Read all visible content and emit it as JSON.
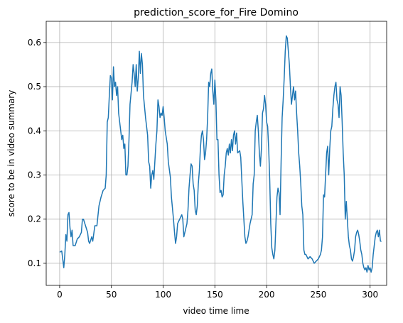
{
  "chart_data": {
    "type": "line",
    "title": "prediction_score_for_Fire Domino",
    "xlabel": "video time lime",
    "ylabel": "score to be in video summary",
    "color": "#1f77b4",
    "grid": true,
    "xlim": [
      -13,
      316
    ],
    "ylim": [
      0.05,
      0.648
    ],
    "xticks": [
      0,
      50,
      100,
      150,
      200,
      250,
      300
    ],
    "yticks": [
      0.1,
      0.2,
      0.3,
      0.4,
      0.5,
      0.6
    ],
    "x": [
      0,
      2,
      4,
      5,
      6,
      7,
      8,
      9,
      10,
      11,
      12,
      13,
      15,
      17,
      19,
      21,
      22,
      23,
      25,
      27,
      28,
      29,
      31,
      32,
      34,
      36,
      38,
      40,
      42,
      44,
      45,
      46,
      47,
      48,
      49,
      50,
      51,
      52,
      53,
      54,
      55,
      56,
      57,
      58,
      59,
      60,
      61,
      62,
      63,
      64,
      65,
      66,
      67,
      68,
      70,
      71,
      72,
      73,
      74,
      75,
      76,
      77,
      78,
      79,
      80,
      81,
      83,
      85,
      86,
      87,
      88,
      89,
      90,
      91,
      92,
      93,
      94,
      95,
      96,
      97,
      98,
      99,
      100,
      101,
      102,
      104,
      105,
      107,
      108,
      110,
      111,
      112,
      113,
      114,
      116,
      118,
      119,
      120,
      121,
      122,
      123,
      124,
      125,
      126,
      127,
      128,
      129,
      130,
      131,
      132,
      133,
      134,
      135,
      136,
      137,
      138,
      139,
      140,
      141,
      142,
      143,
      144,
      145,
      146,
      147,
      148,
      149,
      150,
      151,
      152,
      153,
      154,
      155,
      156,
      157,
      158,
      159,
      160,
      161,
      162,
      163,
      164,
      165,
      166,
      167,
      168,
      169,
      170,
      171,
      172,
      174,
      175,
      176,
      177,
      178,
      179,
      180,
      181,
      182,
      184,
      185,
      186,
      187,
      188,
      189,
      190,
      191,
      192,
      193,
      194,
      195,
      196,
      197,
      198,
      199,
      200,
      201,
      202,
      203,
      204,
      205,
      206,
      207,
      208,
      209,
      210,
      211,
      212,
      213,
      214,
      215,
      216,
      217,
      218,
      219,
      220,
      221,
      222,
      223,
      224,
      225,
      226,
      227,
      228,
      229,
      230,
      231,
      232,
      233,
      234,
      235,
      236,
      237,
      238,
      239,
      240,
      242,
      244,
      246,
      248,
      250,
      252,
      253,
      254,
      255,
      256,
      257,
      258,
      259,
      260,
      261,
      262,
      263,
      264,
      265,
      266,
      267,
      268,
      269,
      270,
      271,
      272,
      273,
      274,
      275,
      276,
      277,
      278,
      279,
      280,
      281,
      282,
      283,
      284,
      285,
      286,
      287,
      288,
      289,
      290,
      291,
      292,
      293,
      294,
      295,
      296,
      297,
      298,
      299,
      300,
      301,
      302,
      303,
      304,
      305,
      306,
      307,
      308,
      309,
      310,
      311
    ],
    "values": [
      0.125,
      0.128,
      0.09,
      0.12,
      0.165,
      0.15,
      0.21,
      0.215,
      0.18,
      0.16,
      0.175,
      0.14,
      0.14,
      0.155,
      0.16,
      0.17,
      0.2,
      0.2,
      0.185,
      0.17,
      0.15,
      0.145,
      0.16,
      0.15,
      0.185,
      0.185,
      0.23,
      0.25,
      0.265,
      0.27,
      0.3,
      0.42,
      0.43,
      0.48,
      0.525,
      0.52,
      0.47,
      0.545,
      0.5,
      0.51,
      0.48,
      0.5,
      0.44,
      0.42,
      0.4,
      0.38,
      0.39,
      0.36,
      0.37,
      0.3,
      0.3,
      0.32,
      0.38,
      0.46,
      0.51,
      0.55,
      0.53,
      0.5,
      0.55,
      0.49,
      0.52,
      0.58,
      0.53,
      0.575,
      0.55,
      0.48,
      0.43,
      0.39,
      0.33,
      0.32,
      0.27,
      0.3,
      0.31,
      0.29,
      0.33,
      0.37,
      0.4,
      0.47,
      0.455,
      0.43,
      0.44,
      0.435,
      0.455,
      0.43,
      0.4,
      0.37,
      0.33,
      0.295,
      0.25,
      0.2,
      0.17,
      0.145,
      0.16,
      0.19,
      0.2,
      0.21,
      0.2,
      0.16,
      0.17,
      0.18,
      0.19,
      0.22,
      0.27,
      0.3,
      0.325,
      0.32,
      0.28,
      0.265,
      0.22,
      0.21,
      0.23,
      0.28,
      0.31,
      0.36,
      0.39,
      0.4,
      0.38,
      0.335,
      0.35,
      0.38,
      0.43,
      0.51,
      0.5,
      0.53,
      0.54,
      0.49,
      0.46,
      0.515,
      0.47,
      0.38,
      0.38,
      0.3,
      0.26,
      0.265,
      0.25,
      0.255,
      0.3,
      0.32,
      0.35,
      0.36,
      0.345,
      0.37,
      0.35,
      0.38,
      0.355,
      0.39,
      0.4,
      0.37,
      0.395,
      0.35,
      0.355,
      0.34,
      0.29,
      0.24,
      0.2,
      0.16,
      0.145,
      0.15,
      0.16,
      0.19,
      0.2,
      0.21,
      0.28,
      0.3,
      0.4,
      0.42,
      0.435,
      0.4,
      0.35,
      0.32,
      0.36,
      0.44,
      0.45,
      0.48,
      0.46,
      0.42,
      0.41,
      0.36,
      0.29,
      0.19,
      0.135,
      0.12,
      0.11,
      0.13,
      0.19,
      0.25,
      0.27,
      0.26,
      0.21,
      0.33,
      0.43,
      0.47,
      0.52,
      0.58,
      0.615,
      0.61,
      0.58,
      0.55,
      0.5,
      0.46,
      0.48,
      0.5,
      0.47,
      0.49,
      0.44,
      0.4,
      0.35,
      0.32,
      0.28,
      0.23,
      0.21,
      0.13,
      0.12,
      0.12,
      0.115,
      0.11,
      0.115,
      0.11,
      0.1,
      0.105,
      0.11,
      0.12,
      0.13,
      0.16,
      0.255,
      0.25,
      0.3,
      0.35,
      0.365,
      0.3,
      0.36,
      0.4,
      0.41,
      0.45,
      0.48,
      0.5,
      0.51,
      0.47,
      0.46,
      0.43,
      0.5,
      0.48,
      0.42,
      0.35,
      0.3,
      0.2,
      0.24,
      0.2,
      0.16,
      0.14,
      0.13,
      0.11,
      0.105,
      0.115,
      0.13,
      0.16,
      0.17,
      0.175,
      0.165,
      0.15,
      0.13,
      0.12,
      0.1,
      0.09,
      0.085,
      0.09,
      0.08,
      0.095,
      0.085,
      0.09,
      0.08,
      0.09,
      0.12,
      0.14,
      0.16,
      0.17,
      0.175,
      0.16,
      0.175,
      0.15,
      0.15
    ]
  }
}
